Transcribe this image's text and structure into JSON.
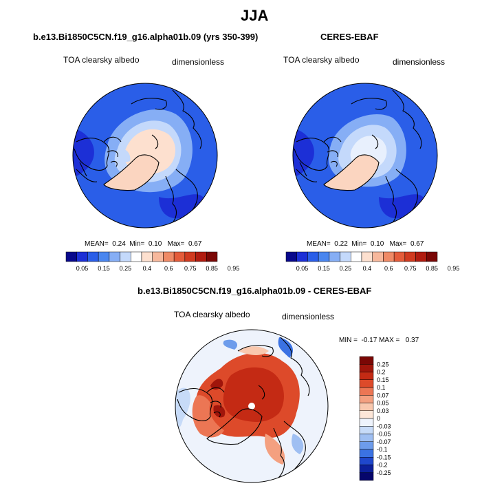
{
  "season": "JJA",
  "panels": {
    "model": {
      "title": "b.e13.Bi1850C5CN.f19_g16.alpha01b.09 (yrs 350-399)",
      "variable": "TOA clearsky albedo",
      "units": "dimensionless",
      "stats": {
        "mean_label": "MEAN=",
        "mean": "0.24",
        "min_label": "Min=",
        "min": "0.10",
        "max_label": "Max=",
        "max": "0.67"
      }
    },
    "obs": {
      "title": "CERES-EBAF",
      "variable": "TOA clearsky albedo",
      "units": "dimensionless",
      "stats": {
        "mean_label": "MEAN=",
        "mean": "0.22",
        "min_label": "Min=",
        "min": "0.10",
        "max_label": "Max=",
        "max": "0.67"
      }
    },
    "diff": {
      "title": "b.e13.Bi1850C5CN.f19_g16.alpha01b.09 - CERES-EBAF",
      "variable": "TOA clearsky albedo",
      "units": "dimensionless",
      "stats_text": "MIN =  -0.17 MAX =   0.37"
    }
  },
  "colorbars": {
    "abs": {
      "labels": [
        "0.05",
        "0.15",
        "0.25",
        "0.4",
        "0.6",
        "0.75",
        "0.85",
        "0.95"
      ],
      "colors": [
        "#08088c",
        "#1c2fd6",
        "#2a5ee8",
        "#4a86ef",
        "#86aef5",
        "#c4d9fb",
        "#ffffff",
        "#fde0cf",
        "#f7b89c",
        "#ef8a66",
        "#e45c3a",
        "#d03a1f",
        "#b01b0f",
        "#7a0705"
      ]
    },
    "diff": {
      "labels": [
        "0.25",
        "0.2",
        "0.15",
        "0.1",
        "0.07",
        "0.05",
        "0.03",
        "0",
        "-0.03",
        "-0.05",
        "-0.07",
        "-0.1",
        "-0.15",
        "-0.2",
        "-0.25"
      ],
      "colors": [
        "#7a0705",
        "#a0150b",
        "#c42a14",
        "#dd4a2a",
        "#ec7654",
        "#f4a080",
        "#f9c8ae",
        "#fde6d8",
        "#eef3fc",
        "#c7dbf8",
        "#9fbff2",
        "#6d9ceb",
        "#3b72e3",
        "#1f47cc",
        "#0c1f9a",
        "#06066b"
      ]
    }
  }
}
